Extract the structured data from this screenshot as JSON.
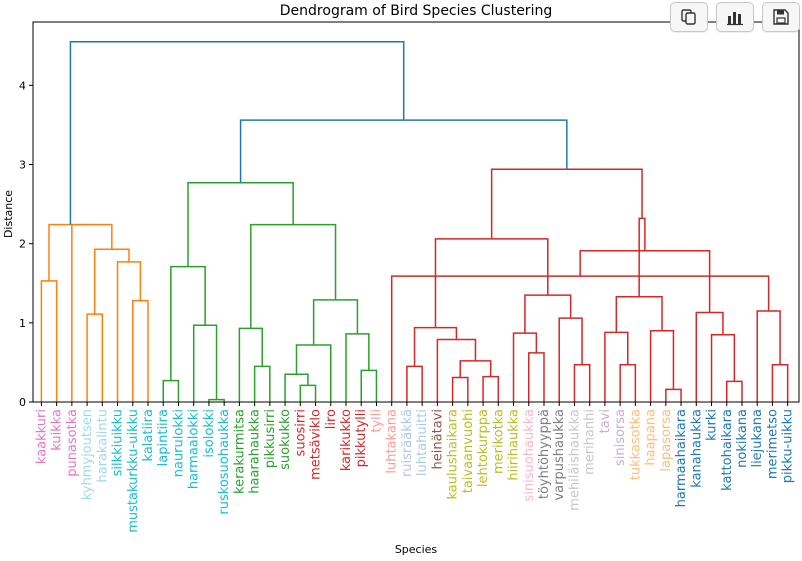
{
  "toolbar": {
    "icons": [
      "copy-icon",
      "bar-chart-icon",
      "save-icon"
    ]
  },
  "chart_data": {
    "type": "dendrogram",
    "title": "Dendrogram of Bird Species Clustering",
    "xlabel": "Species",
    "ylabel": "Distance",
    "ylim": [
      0,
      4.8
    ],
    "yticks": [
      0,
      1,
      2,
      3,
      4
    ],
    "grid": false,
    "leaves": [
      {
        "label": "kaakkuri",
        "color": "#e377c2"
      },
      {
        "label": "kuikka",
        "color": "#e377c2"
      },
      {
        "label": "punasotka",
        "color": "#e377c2"
      },
      {
        "label": "kyhmyjoutsen",
        "color": "#9edae5"
      },
      {
        "label": "harakalintu",
        "color": "#9edae5"
      },
      {
        "label": "silkkiuikku",
        "color": "#17becf"
      },
      {
        "label": "mustakurkku-uikku",
        "color": "#17becf"
      },
      {
        "label": "kalatiira",
        "color": "#17becf"
      },
      {
        "label": "lapintiira",
        "color": "#17becf"
      },
      {
        "label": "naurulokki",
        "color": "#17becf"
      },
      {
        "label": "harmaalokki",
        "color": "#17becf"
      },
      {
        "label": "isolokki",
        "color": "#17becf"
      },
      {
        "label": "ruskosuohaukka",
        "color": "#17becf"
      },
      {
        "label": "kerakurmitsa",
        "color": "#2ca02c"
      },
      {
        "label": "haarahaukka",
        "color": "#2ca02c"
      },
      {
        "label": "pikkusirri",
        "color": "#2ca02c"
      },
      {
        "label": "suokukko",
        "color": "#2ca02c"
      },
      {
        "label": "suosirri",
        "color": "#d62728"
      },
      {
        "label": "metsäviklo",
        "color": "#d62728"
      },
      {
        "label": "liro",
        "color": "#d62728"
      },
      {
        "label": "karikukko",
        "color": "#d62728"
      },
      {
        "label": "pikkutylli",
        "color": "#d62728"
      },
      {
        "label": "tylli",
        "color": "#ff9896"
      },
      {
        "label": "luhtakana",
        "color": "#ff9896"
      },
      {
        "label": "ruisrääkkä",
        "color": "#aec7e8"
      },
      {
        "label": "luhtahuitti",
        "color": "#aec7e8"
      },
      {
        "label": "heinätavi",
        "color": "#8c564b"
      },
      {
        "label": "kaulushaikara",
        "color": "#bcbd22"
      },
      {
        "label": "taivaanvuohi",
        "color": "#bcbd22"
      },
      {
        "label": "lehtokurppa",
        "color": "#bcbd22"
      },
      {
        "label": "merikotka",
        "color": "#bcbd22"
      },
      {
        "label": "hiirihaukka",
        "color": "#bcbd22"
      },
      {
        "label": "sinisuohaukka",
        "color": "#f7b6d2"
      },
      {
        "label": "töyhtöhyyppä",
        "color": "#7f7f7f"
      },
      {
        "label": "varpushaukka",
        "color": "#7f7f7f"
      },
      {
        "label": "mehiläishaukka",
        "color": "#c7c7c7"
      },
      {
        "label": "merihanhi",
        "color": "#c7c7c7"
      },
      {
        "label": "tavi",
        "color": "#c5b0d5"
      },
      {
        "label": "sinisorsa",
        "color": "#c5b0d5"
      },
      {
        "label": "tukkasotka",
        "color": "#ffbb78"
      },
      {
        "label": "haapana",
        "color": "#ffbb78"
      },
      {
        "label": "lapasorsa",
        "color": "#ffbb78"
      },
      {
        "label": "harmaahaikara",
        "color": "#1f77b4"
      },
      {
        "label": "kanahaukka",
        "color": "#1f77b4"
      },
      {
        "label": "kurki",
        "color": "#1f77b4"
      },
      {
        "label": "kattohaikara",
        "color": "#1f77b4"
      },
      {
        "label": "nokikana",
        "color": "#1f77b4"
      },
      {
        "label": "liejukana",
        "color": "#1f77b4"
      },
      {
        "label": "merimetso",
        "color": "#1f77b4"
      },
      {
        "label": "pikku-uikku",
        "color": "#1f77b4"
      }
    ],
    "links": [
      {
        "l": 0,
        "r": 1,
        "h": 1.53,
        "c": "#ff7f0e"
      },
      {
        "l": 3,
        "r": 4,
        "h": 1.11,
        "c": "#ff7f0e"
      },
      {
        "l": 6,
        "r": 7,
        "h": 1.28,
        "c": "#ff7f0e"
      },
      {
        "l": 5,
        "r": 52,
        "h": 1.77,
        "c": "#ff7f0e"
      },
      {
        "l": 51,
        "r": 53,
        "h": 1.93,
        "c": "#ff7f0e"
      },
      {
        "l": 2,
        "r": 54,
        "h": 2.24,
        "c": "#ff7f0e"
      },
      {
        "l": 50,
        "r": 55,
        "h": 2.24,
        "c": "#ff7f0e"
      },
      {
        "l": 8,
        "r": 9,
        "h": 0.27,
        "c": "#2ca02c"
      },
      {
        "l": 11,
        "r": 12,
        "h": 0.03,
        "c": "#2ca02c"
      },
      {
        "l": 10,
        "r": 58,
        "h": 0.97,
        "c": "#2ca02c"
      },
      {
        "l": 57,
        "r": 59,
        "h": 1.71,
        "c": "#2ca02c"
      },
      {
        "l": 14,
        "r": 15,
        "h": 0.45,
        "c": "#2ca02c"
      },
      {
        "l": 13,
        "r": 61,
        "h": 0.93,
        "c": "#2ca02c"
      },
      {
        "l": 17,
        "r": 18,
        "h": 0.21,
        "c": "#2ca02c"
      },
      {
        "l": 16,
        "r": 63,
        "h": 0.35,
        "c": "#2ca02c"
      },
      {
        "l": 64,
        "r": 19,
        "h": 0.72,
        "c": "#2ca02c"
      },
      {
        "l": 21,
        "r": 22,
        "h": 0.4,
        "c": "#2ca02c"
      },
      {
        "l": 20,
        "r": 66,
        "h": 0.86,
        "c": "#2ca02c"
      },
      {
        "l": 65,
        "r": 67,
        "h": 1.29,
        "c": "#2ca02c"
      },
      {
        "l": 62,
        "r": 68,
        "h": 2.24,
        "c": "#2ca02c"
      },
      {
        "l": 60,
        "r": 69,
        "h": 2.77,
        "c": "#2ca02c"
      },
      {
        "l": 27,
        "r": 28,
        "h": 0.31,
        "c": "#d62728"
      },
      {
        "l": 29,
        "r": 30,
        "h": 0.32,
        "c": "#d62728"
      },
      {
        "l": 71,
        "r": 72,
        "h": 0.52,
        "c": "#d62728"
      },
      {
        "l": 26,
        "r": 73,
        "h": 0.79,
        "c": "#d62728"
      },
      {
        "l": 24,
        "r": 25,
        "h": 0.45,
        "c": "#d62728"
      },
      {
        "l": 75,
        "r": 74,
        "h": 0.94,
        "c": "#d62728"
      },
      {
        "l": 32,
        "r": 33,
        "h": 0.62,
        "c": "#d62728"
      },
      {
        "l": 31,
        "r": 77,
        "h": 0.87,
        "c": "#d62728"
      },
      {
        "l": 35,
        "r": 36,
        "h": 0.47,
        "c": "#d62728"
      },
      {
        "l": 34,
        "r": 79,
        "h": 1.06,
        "c": "#d62728"
      },
      {
        "l": 78,
        "r": 80,
        "h": 1.35,
        "c": "#d62728"
      },
      {
        "l": 76,
        "r": 81,
        "h": 2.06,
        "c": "#d62728"
      },
      {
        "l": 38,
        "r": 39,
        "h": 0.47,
        "c": "#d62728"
      },
      {
        "l": 37,
        "r": 83,
        "h": 0.88,
        "c": "#d62728"
      },
      {
        "l": 41,
        "r": 42,
        "h": 0.16,
        "c": "#d62728"
      },
      {
        "l": 40,
        "r": 85,
        "h": 0.9,
        "c": "#d62728"
      },
      {
        "l": 84,
        "r": 86,
        "h": 1.33,
        "c": "#d62728"
      },
      {
        "l": 45,
        "r": 46,
        "h": 0.26,
        "c": "#d62728"
      },
      {
        "l": 44,
        "r": 88,
        "h": 0.85,
        "c": "#d62728"
      },
      {
        "l": 43,
        "r": 89,
        "h": 1.13,
        "c": "#d62728"
      },
      {
        "l": 48,
        "r": 49,
        "h": 0.47,
        "c": "#d62728"
      },
      {
        "l": 47,
        "r": 91,
        "h": 1.15,
        "c": "#d62728"
      },
      {
        "l": 23,
        "r": 92,
        "h": 1.59,
        "c": "#d62728"
      },
      {
        "l": 90,
        "r": 93,
        "h": 1.91,
        "c": "#d62728"
      },
      {
        "l": 87,
        "r": 94,
        "h": 2.32,
        "c": "#d62728"
      },
      {
        "l": 82,
        "r": 95,
        "h": 2.94,
        "c": "#d62728"
      },
      {
        "l": 70,
        "r": 96,
        "h": 3.56,
        "c": "#1f77b4"
      },
      {
        "l": 56,
        "r": 97,
        "h": 4.55,
        "c": "#1f77b4"
      }
    ]
  }
}
